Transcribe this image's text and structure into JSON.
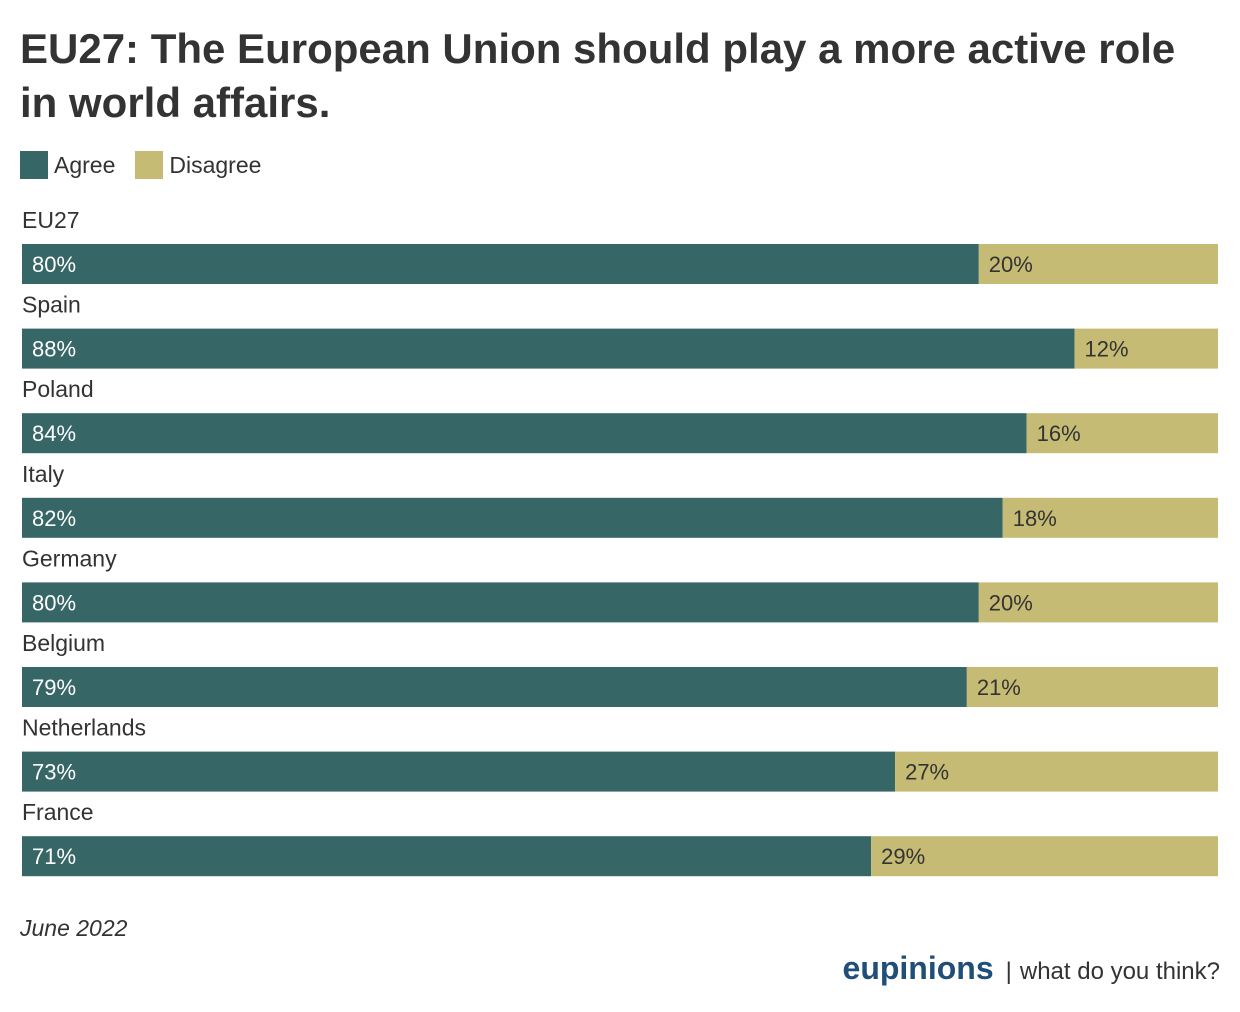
{
  "chart_data": {
    "type": "bar",
    "orientation": "horizontal",
    "stacked": true,
    "title": "EU27: The European Union should play a more active role in world affairs.",
    "categories": [
      "EU27",
      "Spain",
      "Poland",
      "Italy",
      "Germany",
      "Belgium",
      "Netherlands",
      "France"
    ],
    "series": [
      {
        "name": "Agree",
        "color": "#376667",
        "values": [
          80,
          88,
          84,
          82,
          80,
          79,
          73,
          71
        ],
        "labels": [
          "80%",
          "88%",
          "84%",
          "82%",
          "80%",
          "79%",
          "73%",
          "71%"
        ]
      },
      {
        "name": "Disagree",
        "color": "#c6bb74",
        "values": [
          20,
          12,
          16,
          18,
          20,
          21,
          27,
          29
        ],
        "labels": [
          "20%",
          "12%",
          "16%",
          "18%",
          "20%",
          "21%",
          "27%",
          "29%"
        ]
      }
    ],
    "xlim": [
      0,
      100
    ],
    "grid": false,
    "legend_position": "top-left"
  },
  "note": "June 2022",
  "footer": {
    "brand": "eupinions",
    "separator": "|",
    "tagline": "what do you think?"
  }
}
